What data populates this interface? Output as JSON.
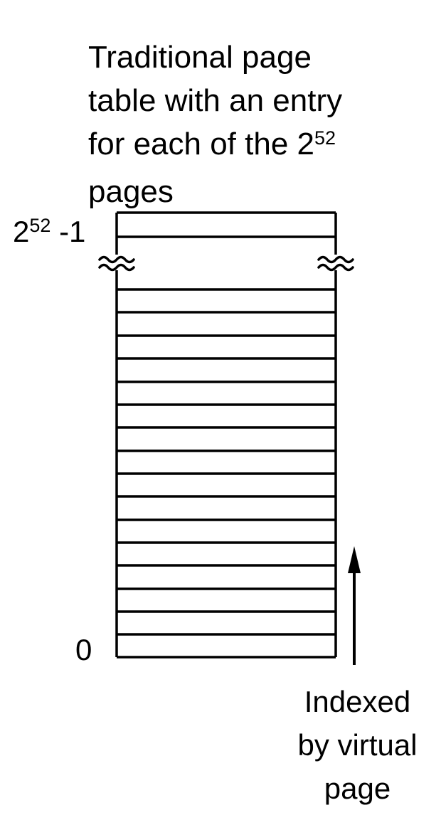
{
  "title": {
    "lines": [
      "Traditional page",
      "table with an entry",
      "for each of the 2",
      "pages"
    ],
    "superscript": "52"
  },
  "top_index": {
    "base": "2",
    "exponent": "52",
    "suffix": " -1"
  },
  "bottom_index": "0",
  "index_caption": [
    "Indexed",
    "by virtual",
    "page"
  ]
}
